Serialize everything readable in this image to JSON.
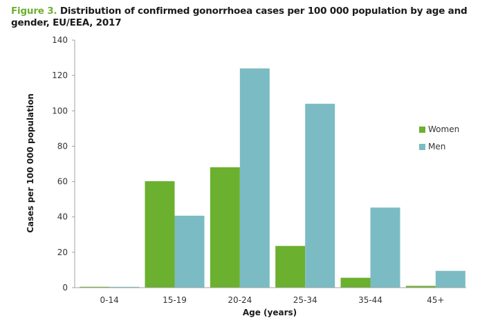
{
  "title": {
    "figure_label": "Figure 3.",
    "text": "Distribution of confirmed gonorrhoea cases per 100 000 population by age and gender, EU/EEA, 2017"
  },
  "colors": {
    "women": "#6bb02e",
    "men": "#7bbcc4",
    "axis": "#a0a0a0",
    "figure_label": "#6bb02e"
  },
  "chart_data": {
    "type": "bar",
    "title": "Figure 3. Distribution of confirmed gonorrhoea cases per 100 000 population by age and gender, EU/EEA, 2017",
    "xlabel": "Age (years)",
    "ylabel": "Cases per 100 000 population",
    "categories": [
      "0-14",
      "15-19",
      "20-24",
      "25-34",
      "35-44",
      "45+"
    ],
    "series": [
      {
        "name": "Women",
        "values": [
          0.5,
          60.2,
          68.1,
          23.6,
          5.6,
          1.0
        ]
      },
      {
        "name": "Men",
        "values": [
          0.1,
          40.7,
          124.0,
          104.0,
          45.3,
          9.5
        ]
      }
    ],
    "ylim": [
      0,
      140
    ],
    "yticks": [
      0,
      20,
      40,
      60,
      80,
      100,
      120,
      140
    ],
    "grid": false,
    "legend_position": "right"
  },
  "legend": {
    "items": [
      {
        "label": "Women"
      },
      {
        "label": "Men"
      }
    ]
  }
}
